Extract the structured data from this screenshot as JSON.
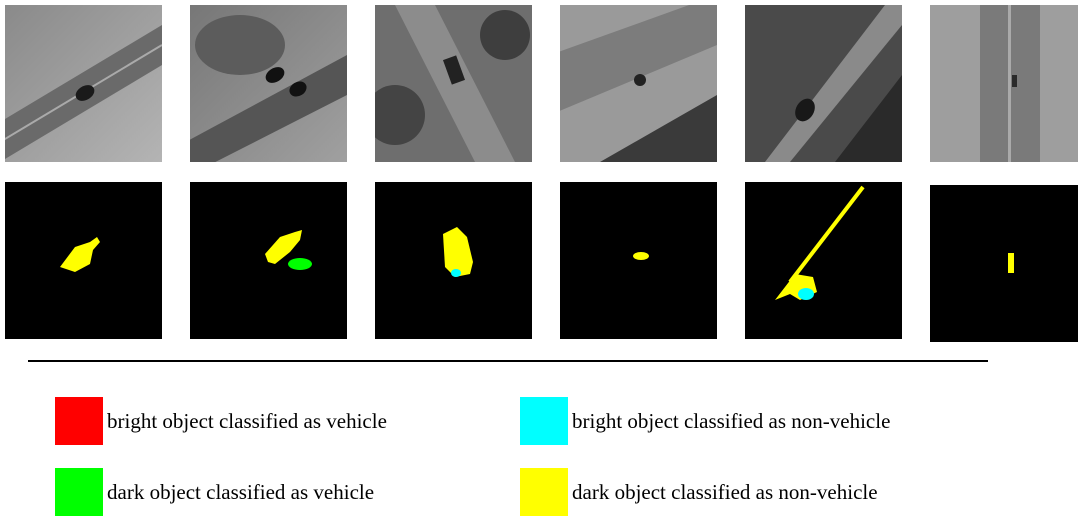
{
  "legend": [
    {
      "label": "bright object classified as vehicle",
      "color": "#ff0000"
    },
    {
      "label": "bright object classified as non-vehicle",
      "color": "#00ffff"
    },
    {
      "label": "dark object classified as vehicle",
      "color": "#00ff00"
    },
    {
      "label": "dark object classified as non-vehicle",
      "color": "#ffff00"
    }
  ]
}
